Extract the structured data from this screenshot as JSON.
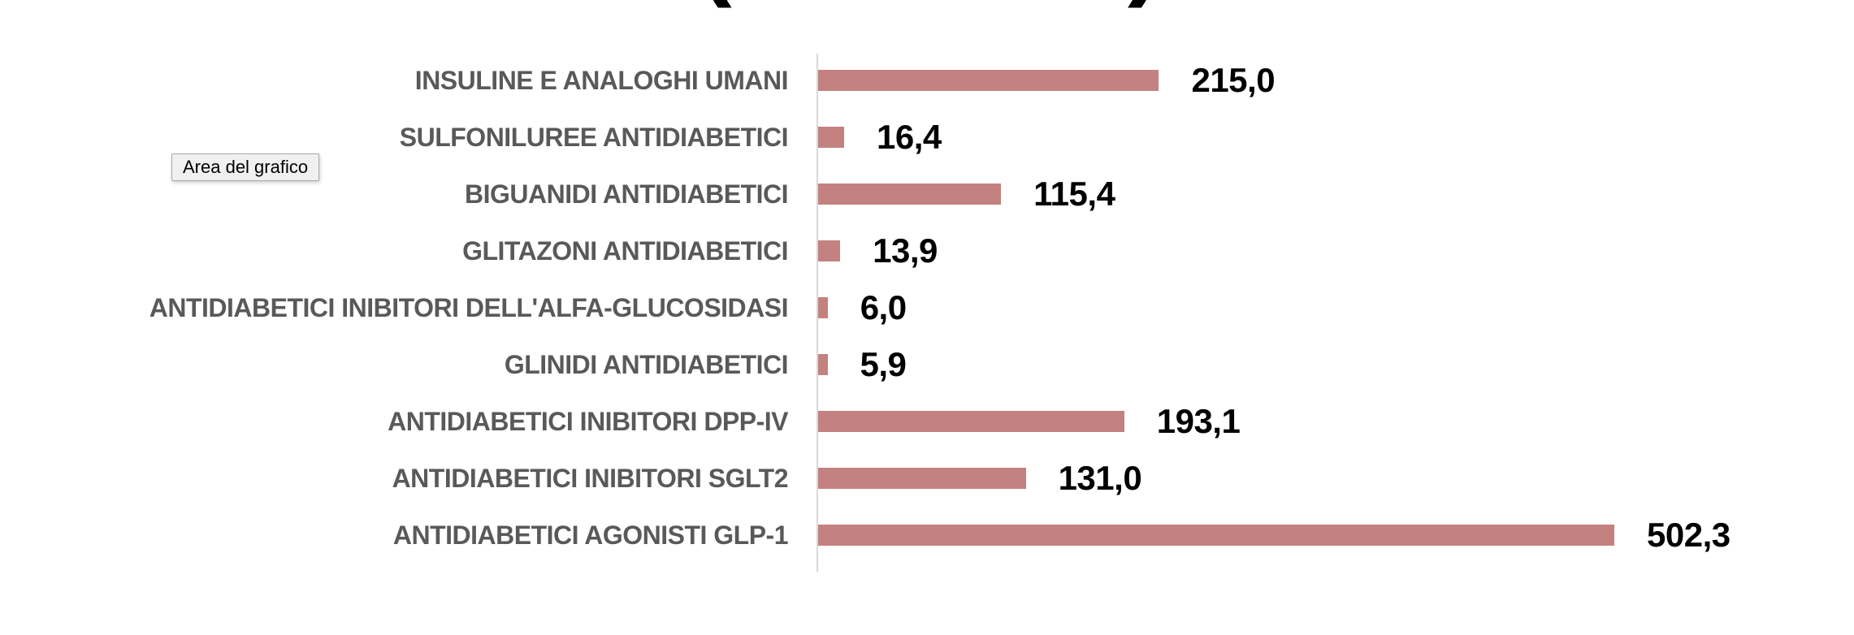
{
  "clipped_title": {
    "left_fragment": "(",
    "right_fragment": ")"
  },
  "tooltip": {
    "label": "Area del grafico",
    "background": "#f0f0f0",
    "border_color": "#a9a9a9"
  },
  "chart_data": {
    "type": "bar",
    "orientation": "horizontal",
    "categories": [
      "INSULINE E ANALOGHI UMANI",
      "SULFONILUREE ANTIDIABETICI",
      "BIGUANIDI ANTIDIABETICI",
      "GLITAZONI ANTIDIABETICI",
      "ANTIDIABETICI INIBITORI DELL'ALFA-GLUCOSIDASI",
      "GLINIDI ANTIDIABETICI",
      "ANTIDIABETICI INIBITORI DPP-IV",
      "ANTIDIABETICI INIBITORI SGLT2",
      "ANTIDIABETICI AGONISTI GLP-1"
    ],
    "values": [
      215.0,
      16.4,
      115.4,
      13.9,
      6.0,
      5.9,
      193.1,
      131.0,
      502.3
    ],
    "value_labels": [
      "215,0",
      "16,4",
      "115,4",
      "13,9",
      "6,0",
      "5,9",
      "193,1",
      "131,0",
      "502,3"
    ],
    "xlim": [
      0,
      502.3
    ],
    "grid": false,
    "legend": false,
    "data_label_position": "outside-end",
    "bar_color": "#c3827f",
    "axis_line_color": "#d9d9d9",
    "category_label_color": "#595959",
    "value_label_color": "#000000"
  }
}
